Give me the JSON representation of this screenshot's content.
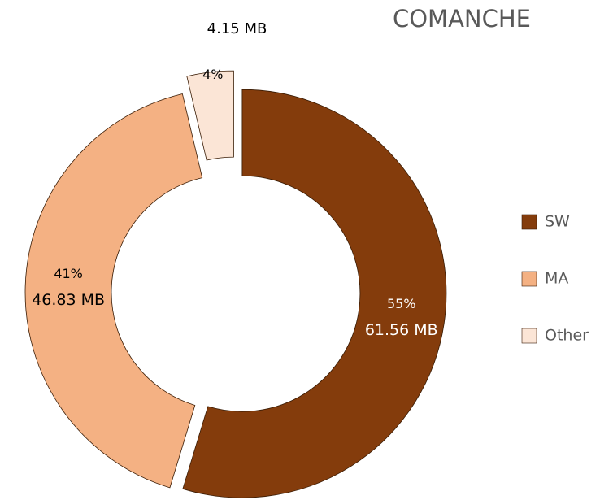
{
  "chart_data": {
    "type": "donut",
    "title": "COMANCHE",
    "categories": [
      "SW",
      "MA",
      "Other"
    ],
    "values": [
      61.56,
      46.83,
      4.15
    ],
    "value_labels": [
      "61.56 MB",
      "46.83 MB",
      "4.15 MB"
    ],
    "percent_labels": [
      "55%",
      "41%",
      "4%"
    ],
    "colors": [
      "#843c0c",
      "#f4b183",
      "#fbe5d6"
    ],
    "legend": "right"
  }
}
